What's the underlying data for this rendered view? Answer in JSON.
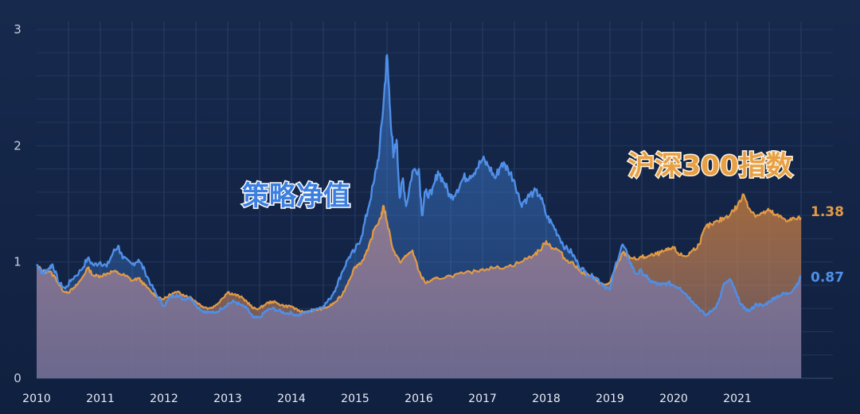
{
  "chart_data": {
    "type": "area",
    "title": "",
    "xlabel": "",
    "ylabel": "",
    "x_tick_labels": [
      "2010",
      "2011",
      "2012",
      "2013",
      "2014",
      "2015",
      "2016",
      "2017",
      "2018",
      "2019",
      "2020",
      "2021"
    ],
    "y_tick_labels": [
      "0",
      "1",
      "2",
      "3"
    ],
    "xlim": [
      2010.0,
      2022.0
    ],
    "ylim": [
      0,
      3
    ],
    "grid": true,
    "legend": "inline labels",
    "x_is_year_fraction": true,
    "series": [
      {
        "name": "策略净值",
        "color": "#4f8fe8",
        "end_label": "0.87",
        "points": [
          [
            2010.0,
            0.98
          ],
          [
            2010.05,
            0.94
          ],
          [
            2010.1,
            0.9
          ],
          [
            2010.2,
            0.95
          ],
          [
            2010.25,
            0.98
          ],
          [
            2010.35,
            0.82
          ],
          [
            2010.45,
            0.77
          ],
          [
            2010.55,
            0.85
          ],
          [
            2010.7,
            0.93
          ],
          [
            2010.8,
            1.03
          ],
          [
            2010.9,
            0.97
          ],
          [
            2011.0,
            1.0
          ],
          [
            2011.1,
            0.96
          ],
          [
            2011.2,
            1.08
          ],
          [
            2011.28,
            1.14
          ],
          [
            2011.35,
            1.03
          ],
          [
            2011.5,
            0.98
          ],
          [
            2011.6,
            1.02
          ],
          [
            2011.7,
            0.92
          ],
          [
            2011.8,
            0.8
          ],
          [
            2011.9,
            0.7
          ],
          [
            2012.0,
            0.62
          ],
          [
            2012.1,
            0.7
          ],
          [
            2012.2,
            0.72
          ],
          [
            2012.3,
            0.68
          ],
          [
            2012.4,
            0.7
          ],
          [
            2012.5,
            0.63
          ],
          [
            2012.6,
            0.58
          ],
          [
            2012.7,
            0.57
          ],
          [
            2012.8,
            0.56
          ],
          [
            2012.9,
            0.6
          ],
          [
            2013.0,
            0.64
          ],
          [
            2013.1,
            0.66
          ],
          [
            2013.2,
            0.63
          ],
          [
            2013.3,
            0.6
          ],
          [
            2013.4,
            0.52
          ],
          [
            2013.5,
            0.52
          ],
          [
            2013.6,
            0.58
          ],
          [
            2013.7,
            0.6
          ],
          [
            2013.8,
            0.58
          ],
          [
            2013.9,
            0.56
          ],
          [
            2014.0,
            0.56
          ],
          [
            2014.1,
            0.54
          ],
          [
            2014.2,
            0.56
          ],
          [
            2014.3,
            0.58
          ],
          [
            2014.4,
            0.6
          ],
          [
            2014.5,
            0.62
          ],
          [
            2014.6,
            0.68
          ],
          [
            2014.7,
            0.78
          ],
          [
            2014.8,
            0.92
          ],
          [
            2014.9,
            1.04
          ],
          [
            2015.0,
            1.1
          ],
          [
            2015.1,
            1.22
          ],
          [
            2015.2,
            1.45
          ],
          [
            2015.3,
            1.7
          ],
          [
            2015.38,
            1.95
          ],
          [
            2015.45,
            2.4
          ],
          [
            2015.5,
            2.78
          ],
          [
            2015.55,
            2.3
          ],
          [
            2015.6,
            1.9
          ],
          [
            2015.65,
            2.05
          ],
          [
            2015.7,
            1.55
          ],
          [
            2015.75,
            1.72
          ],
          [
            2015.8,
            1.48
          ],
          [
            2015.9,
            1.78
          ],
          [
            2016.0,
            1.8
          ],
          [
            2016.05,
            1.4
          ],
          [
            2016.1,
            1.6
          ],
          [
            2016.2,
            1.58
          ],
          [
            2016.3,
            1.78
          ],
          [
            2016.4,
            1.68
          ],
          [
            2016.5,
            1.55
          ],
          [
            2016.6,
            1.62
          ],
          [
            2016.7,
            1.72
          ],
          [
            2016.8,
            1.74
          ],
          [
            2016.9,
            1.8
          ],
          [
            2017.0,
            1.88
          ],
          [
            2017.1,
            1.82
          ],
          [
            2017.2,
            1.72
          ],
          [
            2017.3,
            1.85
          ],
          [
            2017.4,
            1.8
          ],
          [
            2017.5,
            1.7
          ],
          [
            2017.6,
            1.5
          ],
          [
            2017.7,
            1.55
          ],
          [
            2017.8,
            1.6
          ],
          [
            2017.9,
            1.58
          ],
          [
            2018.0,
            1.4
          ],
          [
            2018.1,
            1.32
          ],
          [
            2018.2,
            1.22
          ],
          [
            2018.3,
            1.12
          ],
          [
            2018.4,
            1.08
          ],
          [
            2018.5,
            0.98
          ],
          [
            2018.6,
            0.92
          ],
          [
            2018.7,
            0.88
          ],
          [
            2018.8,
            0.86
          ],
          [
            2018.9,
            0.8
          ],
          [
            2019.0,
            0.76
          ],
          [
            2019.1,
            1.0
          ],
          [
            2019.2,
            1.15
          ],
          [
            2019.3,
            1.02
          ],
          [
            2019.4,
            0.9
          ],
          [
            2019.5,
            0.92
          ],
          [
            2019.6,
            0.85
          ],
          [
            2019.7,
            0.82
          ],
          [
            2019.8,
            0.8
          ],
          [
            2019.9,
            0.82
          ],
          [
            2020.0,
            0.8
          ],
          [
            2020.1,
            0.78
          ],
          [
            2020.2,
            0.72
          ],
          [
            2020.3,
            0.66
          ],
          [
            2020.4,
            0.6
          ],
          [
            2020.5,
            0.54
          ],
          [
            2020.6,
            0.58
          ],
          [
            2020.7,
            0.65
          ],
          [
            2020.8,
            0.82
          ],
          [
            2020.9,
            0.84
          ],
          [
            2021.0,
            0.7
          ],
          [
            2021.1,
            0.6
          ],
          [
            2021.2,
            0.58
          ],
          [
            2021.3,
            0.64
          ],
          [
            2021.4,
            0.62
          ],
          [
            2021.5,
            0.66
          ],
          [
            2021.6,
            0.7
          ],
          [
            2021.7,
            0.72
          ],
          [
            2021.8,
            0.73
          ],
          [
            2021.9,
            0.78
          ],
          [
            2022.0,
            0.87
          ]
        ]
      },
      {
        "name": "沪深300指数",
        "color": "#e29a45",
        "end_label": "1.38",
        "points": [
          [
            2010.0,
            0.97
          ],
          [
            2010.1,
            0.92
          ],
          [
            2010.2,
            0.92
          ],
          [
            2010.3,
            0.86
          ],
          [
            2010.4,
            0.76
          ],
          [
            2010.5,
            0.74
          ],
          [
            2010.6,
            0.78
          ],
          [
            2010.7,
            0.85
          ],
          [
            2010.8,
            0.95
          ],
          [
            2010.9,
            0.88
          ],
          [
            2011.0,
            0.88
          ],
          [
            2011.1,
            0.9
          ],
          [
            2011.2,
            0.92
          ],
          [
            2011.3,
            0.9
          ],
          [
            2011.4,
            0.88
          ],
          [
            2011.5,
            0.84
          ],
          [
            2011.6,
            0.86
          ],
          [
            2011.7,
            0.8
          ],
          [
            2011.8,
            0.74
          ],
          [
            2011.9,
            0.7
          ],
          [
            2012.0,
            0.68
          ],
          [
            2012.1,
            0.72
          ],
          [
            2012.2,
            0.74
          ],
          [
            2012.3,
            0.72
          ],
          [
            2012.4,
            0.7
          ],
          [
            2012.5,
            0.66
          ],
          [
            2012.6,
            0.62
          ],
          [
            2012.7,
            0.6
          ],
          [
            2012.8,
            0.62
          ],
          [
            2012.9,
            0.68
          ],
          [
            2013.0,
            0.74
          ],
          [
            2013.1,
            0.72
          ],
          [
            2013.2,
            0.7
          ],
          [
            2013.3,
            0.66
          ],
          [
            2013.4,
            0.6
          ],
          [
            2013.5,
            0.6
          ],
          [
            2013.6,
            0.64
          ],
          [
            2013.7,
            0.66
          ],
          [
            2013.8,
            0.64
          ],
          [
            2013.9,
            0.62
          ],
          [
            2014.0,
            0.62
          ],
          [
            2014.1,
            0.58
          ],
          [
            2014.2,
            0.57
          ],
          [
            2014.3,
            0.58
          ],
          [
            2014.4,
            0.59
          ],
          [
            2014.5,
            0.6
          ],
          [
            2014.6,
            0.62
          ],
          [
            2014.7,
            0.66
          ],
          [
            2014.8,
            0.72
          ],
          [
            2014.9,
            0.84
          ],
          [
            2015.0,
            0.96
          ],
          [
            2015.1,
            1.0
          ],
          [
            2015.2,
            1.1
          ],
          [
            2015.3,
            1.28
          ],
          [
            2015.4,
            1.38
          ],
          [
            2015.45,
            1.48
          ],
          [
            2015.5,
            1.35
          ],
          [
            2015.6,
            1.1
          ],
          [
            2015.7,
            1.0
          ],
          [
            2015.8,
            1.05
          ],
          [
            2015.9,
            1.1
          ],
          [
            2016.0,
            0.92
          ],
          [
            2016.1,
            0.82
          ],
          [
            2016.2,
            0.84
          ],
          [
            2016.3,
            0.86
          ],
          [
            2016.5,
            0.88
          ],
          [
            2016.7,
            0.9
          ],
          [
            2016.9,
            0.92
          ],
          [
            2017.0,
            0.94
          ],
          [
            2017.2,
            0.95
          ],
          [
            2017.4,
            0.96
          ],
          [
            2017.6,
            1.0
          ],
          [
            2017.8,
            1.06
          ],
          [
            2017.9,
            1.1
          ],
          [
            2018.0,
            1.18
          ],
          [
            2018.1,
            1.12
          ],
          [
            2018.2,
            1.1
          ],
          [
            2018.3,
            1.02
          ],
          [
            2018.4,
            1.0
          ],
          [
            2018.5,
            0.94
          ],
          [
            2018.6,
            0.9
          ],
          [
            2018.7,
            0.88
          ],
          [
            2018.8,
            0.84
          ],
          [
            2018.9,
            0.8
          ],
          [
            2019.0,
            0.82
          ],
          [
            2019.1,
            0.96
          ],
          [
            2019.2,
            1.08
          ],
          [
            2019.3,
            1.05
          ],
          [
            2019.4,
            1.02
          ],
          [
            2019.5,
            1.04
          ],
          [
            2019.6,
            1.05
          ],
          [
            2019.7,
            1.06
          ],
          [
            2019.8,
            1.08
          ],
          [
            2019.9,
            1.1
          ],
          [
            2020.0,
            1.12
          ],
          [
            2020.1,
            1.06
          ],
          [
            2020.2,
            1.05
          ],
          [
            2020.3,
            1.1
          ],
          [
            2020.4,
            1.15
          ],
          [
            2020.5,
            1.3
          ],
          [
            2020.6,
            1.32
          ],
          [
            2020.7,
            1.35
          ],
          [
            2020.8,
            1.38
          ],
          [
            2020.9,
            1.42
          ],
          [
            2021.0,
            1.48
          ],
          [
            2021.1,
            1.58
          ],
          [
            2021.2,
            1.45
          ],
          [
            2021.3,
            1.4
          ],
          [
            2021.4,
            1.42
          ],
          [
            2021.5,
            1.44
          ],
          [
            2021.6,
            1.4
          ],
          [
            2021.7,
            1.38
          ],
          [
            2021.8,
            1.36
          ],
          [
            2021.9,
            1.37
          ],
          [
            2022.0,
            1.38
          ]
        ]
      }
    ]
  }
}
